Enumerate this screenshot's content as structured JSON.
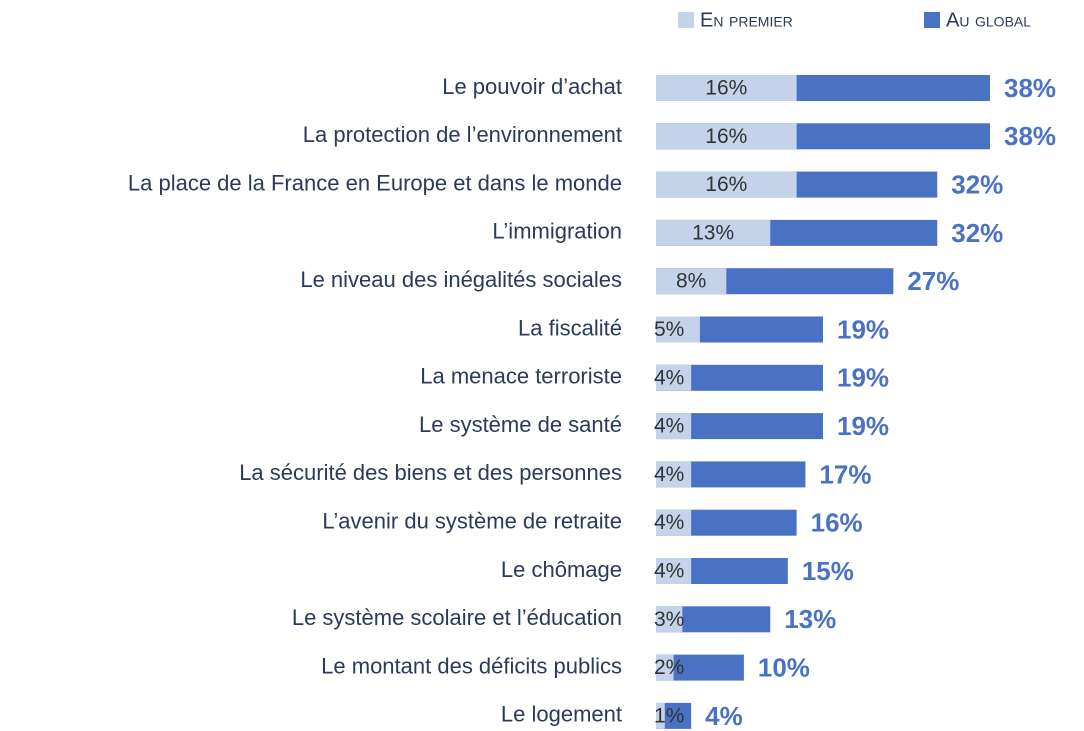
{
  "chart_data": {
    "type": "bar",
    "categories": [
      "Le pouvoir d’achat",
      "La protection de l’environnement",
      "La place de la France en Europe et dans le monde",
      "L’immigration",
      "Le niveau des inégalités sociales",
      "La fiscalité",
      "La menace terroriste",
      "Le système de santé",
      "La sécurité des biens et des personnes",
      "L’avenir du système de retraite",
      "Le chômage",
      "Le système scolaire et l’éducation",
      "Le montant des déficits publics",
      "Le logement"
    ],
    "series": [
      {
        "name": "En premier",
        "color": "#c5d3ea",
        "values": [
          16,
          16,
          16,
          13,
          8,
          5,
          4,
          4,
          4,
          4,
          4,
          3,
          2,
          1
        ],
        "value_labels": [
          "16%",
          "16%",
          "16%",
          "13%",
          "8%",
          "5%",
          "4%",
          "4%",
          "4%",
          "4%",
          "4%",
          "3%",
          "2%",
          "1%"
        ]
      },
      {
        "name": "Au global",
        "color": "#4a72c4",
        "values": [
          38,
          38,
          32,
          32,
          27,
          19,
          19,
          19,
          17,
          16,
          15,
          13,
          10,
          4
        ],
        "value_labels": [
          "38%",
          "38%",
          "32%",
          "32%",
          "27%",
          "19%",
          "19%",
          "19%",
          "17%",
          "16%",
          "15%",
          "13%",
          "10%",
          "4%"
        ]
      }
    ]
  }
}
